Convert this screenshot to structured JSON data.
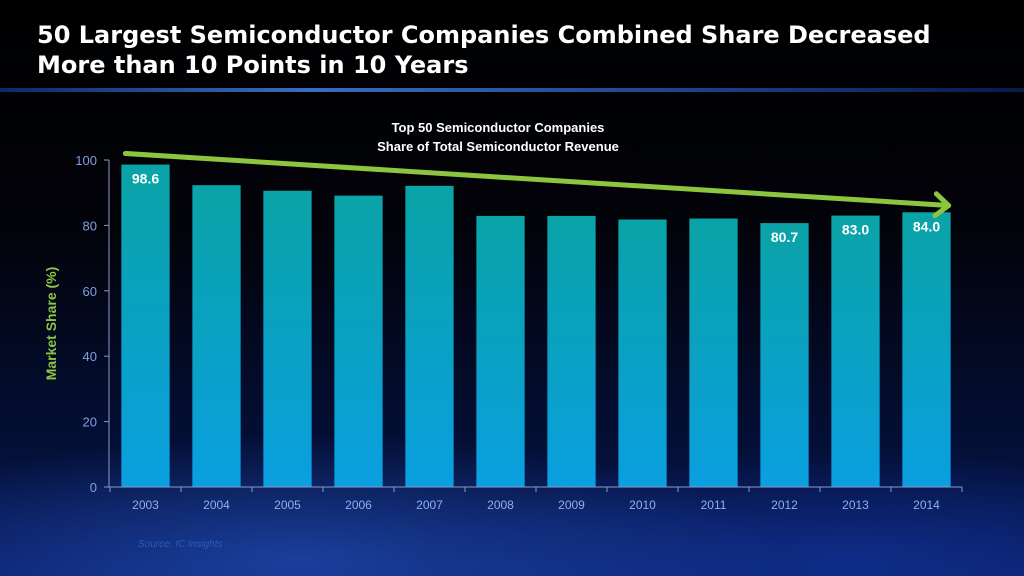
{
  "slide": {
    "title_line1": "50 Largest Semiconductor Companies Combined Share Decreased",
    "title_line2": "More than 10 Points in 10 Years",
    "source": "Source:  IC Insights"
  },
  "colors": {
    "bar_top": "#0aa3a6",
    "bar_bottom": "#0a9fe0",
    "trend_arrow": "#8cc63f",
    "axis_text": "#7f9fe0"
  },
  "chart_data": {
    "type": "bar",
    "title": "Top 50 Semiconductor Companies",
    "subtitle": "Share of Total Semiconductor Revenue",
    "xlabel": "",
    "ylabel": "Market Share (%)",
    "ylim": [
      0,
      100
    ],
    "yticks": [
      0,
      20,
      40,
      60,
      80,
      100
    ],
    "categories": [
      "2003",
      "2004",
      "2005",
      "2006",
      "2007",
      "2008",
      "2009",
      "2010",
      "2011",
      "2012",
      "2013",
      "2014"
    ],
    "values": [
      98.6,
      92.3,
      90.6,
      89.1,
      92.1,
      82.9,
      82.9,
      81.8,
      82.1,
      80.7,
      83.0,
      84.0
    ],
    "data_labels": [
      {
        "category": "2003",
        "text": "98.6"
      },
      {
        "category": "2012",
        "text": "80.7"
      },
      {
        "category": "2013",
        "text": "83.0"
      },
      {
        "category": "2014",
        "text": "84.0"
      }
    ],
    "annotations": [
      {
        "type": "trend-arrow",
        "from_category": "2003",
        "from_value": 102,
        "to_category": "2014",
        "to_value": 87,
        "meaning": "declining share"
      }
    ],
    "grid": false,
    "legend": "none"
  }
}
